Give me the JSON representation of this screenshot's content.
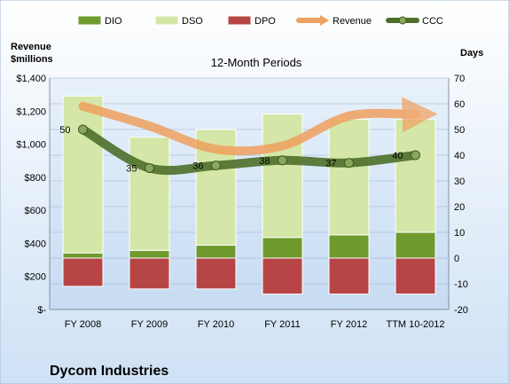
{
  "chart_data": {
    "type": "bar",
    "title": "12-Month Periods",
    "company": "Dycom Industries",
    "left_axis_title": [
      "Revenue",
      "$millions"
    ],
    "right_axis_title": "Days",
    "categories": [
      "FY 2008",
      "FY 2009",
      "FY 2010",
      "FY 2011",
      "FY 2012",
      "TTM 10-2012"
    ],
    "left_ticks": [
      "$-",
      "$200",
      "$400",
      "$600",
      "$800",
      "$1,000",
      "$1,200",
      "$1,400"
    ],
    "right_ticks": [
      "-20",
      "-10",
      "0",
      "10",
      "20",
      "30",
      "40",
      "50",
      "60",
      "70"
    ],
    "left_range": [
      0,
      1400
    ],
    "right_range": [
      -20,
      70
    ],
    "legend_position": "top",
    "series": [
      {
        "name": "DIO",
        "chart": "stacked-bar",
        "axis": "right",
        "color": "#6e9a2e",
        "values": [
          2,
          3,
          5,
          8,
          9,
          10
        ]
      },
      {
        "name": "DSO",
        "chart": "stacked-bar",
        "axis": "right",
        "color": "#d4e7a8",
        "values": [
          61,
          44,
          45,
          48,
          45,
          44
        ]
      },
      {
        "name": "DPO",
        "chart": "negative-bar",
        "axis": "right",
        "color": "#b84545",
        "values": [
          -11,
          -12,
          -12,
          -14,
          -14,
          -14
        ]
      },
      {
        "name": "Revenue",
        "chart": "line",
        "axis": "left",
        "color": "#f0a060",
        "values": [
          1230,
          1110,
          970,
          990,
          1170,
          1180
        ]
      },
      {
        "name": "CCC",
        "chart": "line",
        "axis": "right",
        "color": "#4e6f2a",
        "values": [
          50,
          35,
          36,
          38,
          37,
          40
        ]
      }
    ],
    "ccc_labels": [
      "50",
      "35",
      "36",
      "38",
      "37",
      "40"
    ]
  }
}
